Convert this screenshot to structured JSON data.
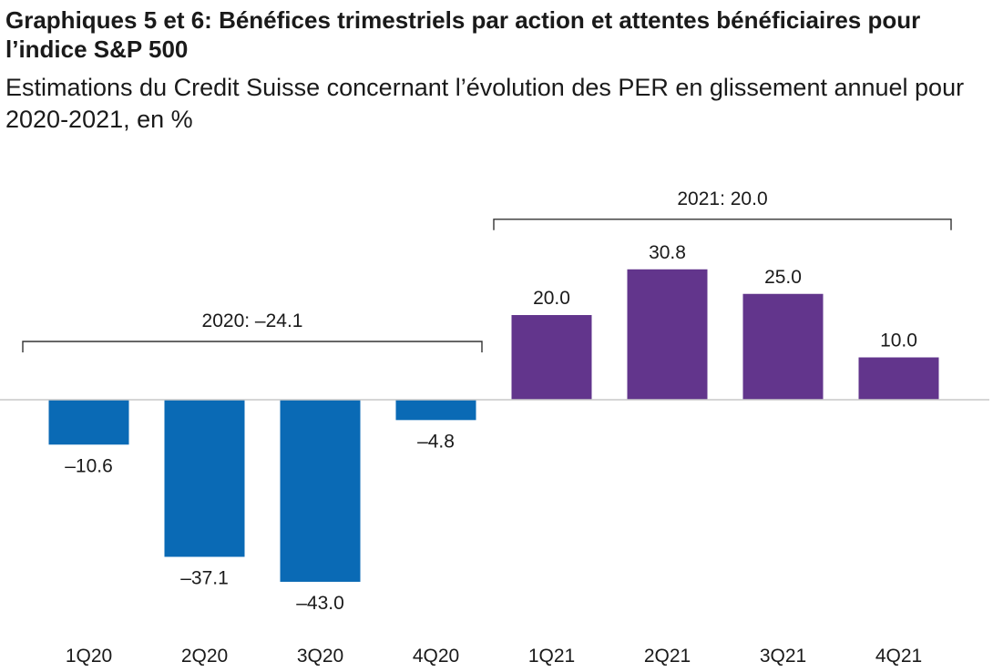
{
  "title": "Graphiques 5 et 6: Bénéfices trimestriels par action et attentes bénéficiaires pour l’indice S&P 500",
  "subtitle": "Estimations du Credit Suisse concernant l’évolution des PER en glissement annuel pour 2020-2021, en %",
  "colors": {
    "y2020": "#0a6ab5",
    "y2021": "#62358c",
    "axis": "#c8c8c8",
    "bracket": "#333333"
  },
  "chart_data": {
    "type": "bar",
    "title": "Graphiques 5 et 6: Bénéfices trimestriels par action et attentes bénéficiaires pour l’indice S&P 500",
    "subtitle": "Estimations du Credit Suisse concernant l’évolution des PER en glissement annuel pour 2020-2021, en %",
    "xlabel": "",
    "ylabel": "",
    "categories": [
      "1Q20",
      "2Q20",
      "3Q20",
      "4Q20",
      "1Q21",
      "2Q21",
      "3Q21",
      "4Q21"
    ],
    "values": [
      -10.6,
      -37.1,
      -43.0,
      -4.8,
      20.0,
      30.8,
      25.0,
      10.0
    ],
    "value_labels": [
      "–10.6",
      "–37.1",
      "–43.0",
      "–4.8",
      "20.0",
      "30.8",
      "25.0",
      "10.0"
    ],
    "bar_color_groups": [
      "2020",
      "2020",
      "2020",
      "2020",
      "2021",
      "2021",
      "2021",
      "2021"
    ],
    "annotations": [
      {
        "text": "2020: –24.1",
        "from": "1Q20",
        "to": "4Q20"
      },
      {
        "text": "2021: 20.0",
        "from": "1Q21",
        "to": "4Q21"
      }
    ],
    "grid": false,
    "legend": "none"
  }
}
